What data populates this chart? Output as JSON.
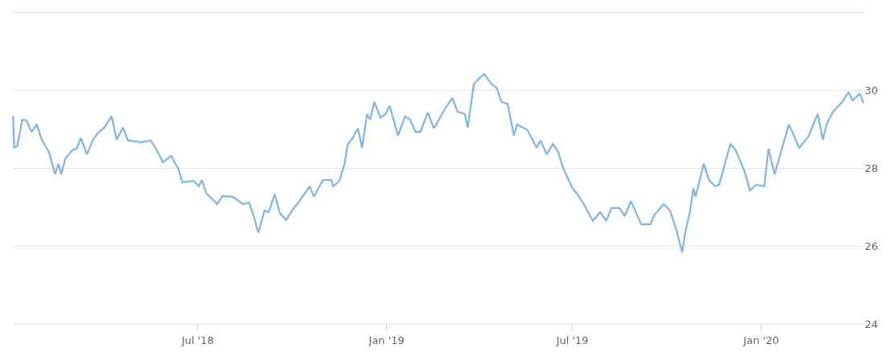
{
  "chart_data": {
    "type": "line",
    "x": [
      "2018-01-02",
      "2018-01-03",
      "2018-01-06",
      "2018-01-11",
      "2018-01-15",
      "2018-01-20",
      "2018-01-25",
      "2018-01-30",
      "2018-02-06",
      "2018-02-12",
      "2018-02-15",
      "2018-02-18",
      "2018-02-22",
      "2018-03-01",
      "2018-03-05",
      "2018-03-09",
      "2018-03-15",
      "2018-03-21",
      "2018-03-26",
      "2018-04-01",
      "2018-04-08",
      "2018-04-13",
      "2018-04-19",
      "2018-04-24",
      "2018-05-07",
      "2018-05-16",
      "2018-05-22",
      "2018-05-28",
      "2018-06-05",
      "2018-06-12",
      "2018-06-16",
      "2018-06-27",
      "2018-07-02",
      "2018-07-05",
      "2018-07-09",
      "2018-07-20",
      "2018-07-25",
      "2018-08-04",
      "2018-08-14",
      "2018-08-20",
      "2018-08-24",
      "2018-08-29",
      "2018-09-04",
      "2018-09-08",
      "2018-09-14",
      "2018-09-19",
      "2018-09-25",
      "2018-10-01",
      "2018-10-08",
      "2018-10-18",
      "2018-10-22",
      "2018-10-31",
      "2018-11-08",
      "2018-11-10",
      "2018-11-16",
      "2018-11-21",
      "2018-11-24",
      "2018-11-29",
      "2018-12-04",
      "2018-12-08",
      "2018-12-13",
      "2018-12-16",
      "2018-12-20",
      "2018-12-26",
      "2018-12-31",
      "2019-01-04",
      "2019-01-12",
      "2019-01-19",
      "2019-01-24",
      "2019-01-29",
      "2019-02-03",
      "2019-02-10",
      "2019-02-16",
      "2019-02-21",
      "2019-02-27",
      "2019-03-06",
      "2019-03-11",
      "2019-03-18",
      "2019-03-21",
      "2019-03-27",
      "2019-04-02",
      "2019-04-06",
      "2019-04-13",
      "2019-04-18",
      "2019-04-23",
      "2019-04-29",
      "2019-05-05",
      "2019-05-08",
      "2019-05-18",
      "2019-05-27",
      "2019-05-31",
      "2019-06-06",
      "2019-06-12",
      "2019-06-17",
      "2019-06-22",
      "2019-07-01",
      "2019-07-05",
      "2019-07-12",
      "2019-07-21",
      "2019-07-28",
      "2019-08-03",
      "2019-08-08",
      "2019-08-16",
      "2019-08-21",
      "2019-08-27",
      "2019-09-06",
      "2019-09-15",
      "2019-09-19",
      "2019-09-28",
      "2019-10-04",
      "2019-10-10",
      "2019-10-16",
      "2019-10-19",
      "2019-10-23",
      "2019-10-27",
      "2019-10-29",
      "2019-11-06",
      "2019-11-11",
      "2019-11-17",
      "2019-11-21",
      "2019-12-02",
      "2019-12-07",
      "2019-12-16",
      "2019-12-21",
      "2019-12-27",
      "2020-01-04",
      "2020-01-08",
      "2020-01-14",
      "2020-01-28",
      "2020-02-07",
      "2020-02-16",
      "2020-02-25",
      "2020-03-01",
      "2020-03-05",
      "2020-03-11",
      "2020-03-20",
      "2020-03-26",
      "2020-03-30",
      "2020-04-06",
      "2020-04-10"
    ],
    "series": [
      {
        "color": "#7cb5ec",
        "values": [
          29.36,
          28.53,
          28.57,
          29.25,
          29.23,
          28.94,
          29.13,
          28.74,
          28.41,
          27.85,
          28.12,
          27.85,
          28.26,
          28.47,
          28.51,
          28.78,
          28.36,
          28.74,
          28.92,
          29.05,
          29.34,
          28.74,
          29.05,
          28.72,
          28.67,
          28.72,
          28.47,
          28.16,
          28.32,
          27.99,
          27.64,
          27.68,
          27.54,
          27.7,
          27.37,
          27.08,
          27.29,
          27.27,
          27.08,
          27.12,
          26.81,
          26.34,
          26.92,
          26.87,
          27.33,
          26.85,
          26.67,
          26.92,
          27.16,
          27.54,
          27.27,
          27.7,
          27.7,
          27.54,
          27.68,
          28.12,
          28.61,
          28.78,
          29.03,
          28.53,
          29.4,
          29.25,
          29.71,
          29.3,
          29.4,
          29.61,
          28.84,
          29.34,
          29.25,
          28.94,
          28.94,
          29.44,
          29.03,
          29.25,
          29.54,
          29.81,
          29.46,
          29.4,
          29.05,
          30.17,
          30.33,
          30.43,
          30.17,
          30.08,
          29.71,
          29.65,
          28.84,
          29.13,
          28.99,
          28.53,
          28.72,
          28.36,
          28.63,
          28.43,
          28.01,
          27.49,
          27.37,
          27.08,
          26.65,
          26.87,
          26.65,
          26.98,
          26.98,
          26.77,
          27.16,
          26.56,
          26.56,
          26.81,
          27.08,
          26.92,
          26.44,
          25.84,
          26.36,
          26.81,
          27.49,
          27.27,
          28.12,
          27.7,
          27.54,
          27.58,
          28.63,
          28.47,
          27.91,
          27.43,
          27.58,
          27.54,
          28.51,
          27.85,
          29.13,
          28.53,
          28.82,
          29.4,
          28.74,
          29.15,
          29.46,
          29.71,
          29.96,
          29.75,
          29.92,
          29.67
        ]
      }
    ],
    "xlim": [
      "2018-01-01",
      "2020-04-10"
    ],
    "xticks": [
      {
        "value": "2018-07-01",
        "label": "Jul '18"
      },
      {
        "value": "2019-01-01",
        "label": "Jan '19"
      },
      {
        "value": "2019-07-01",
        "label": "Jul '19"
      },
      {
        "value": "2020-01-01",
        "label": "Jan '20"
      }
    ],
    "ylim": [
      24,
      32
    ],
    "yticks": [
      24,
      26,
      28,
      30
    ],
    "grid": "y"
  }
}
